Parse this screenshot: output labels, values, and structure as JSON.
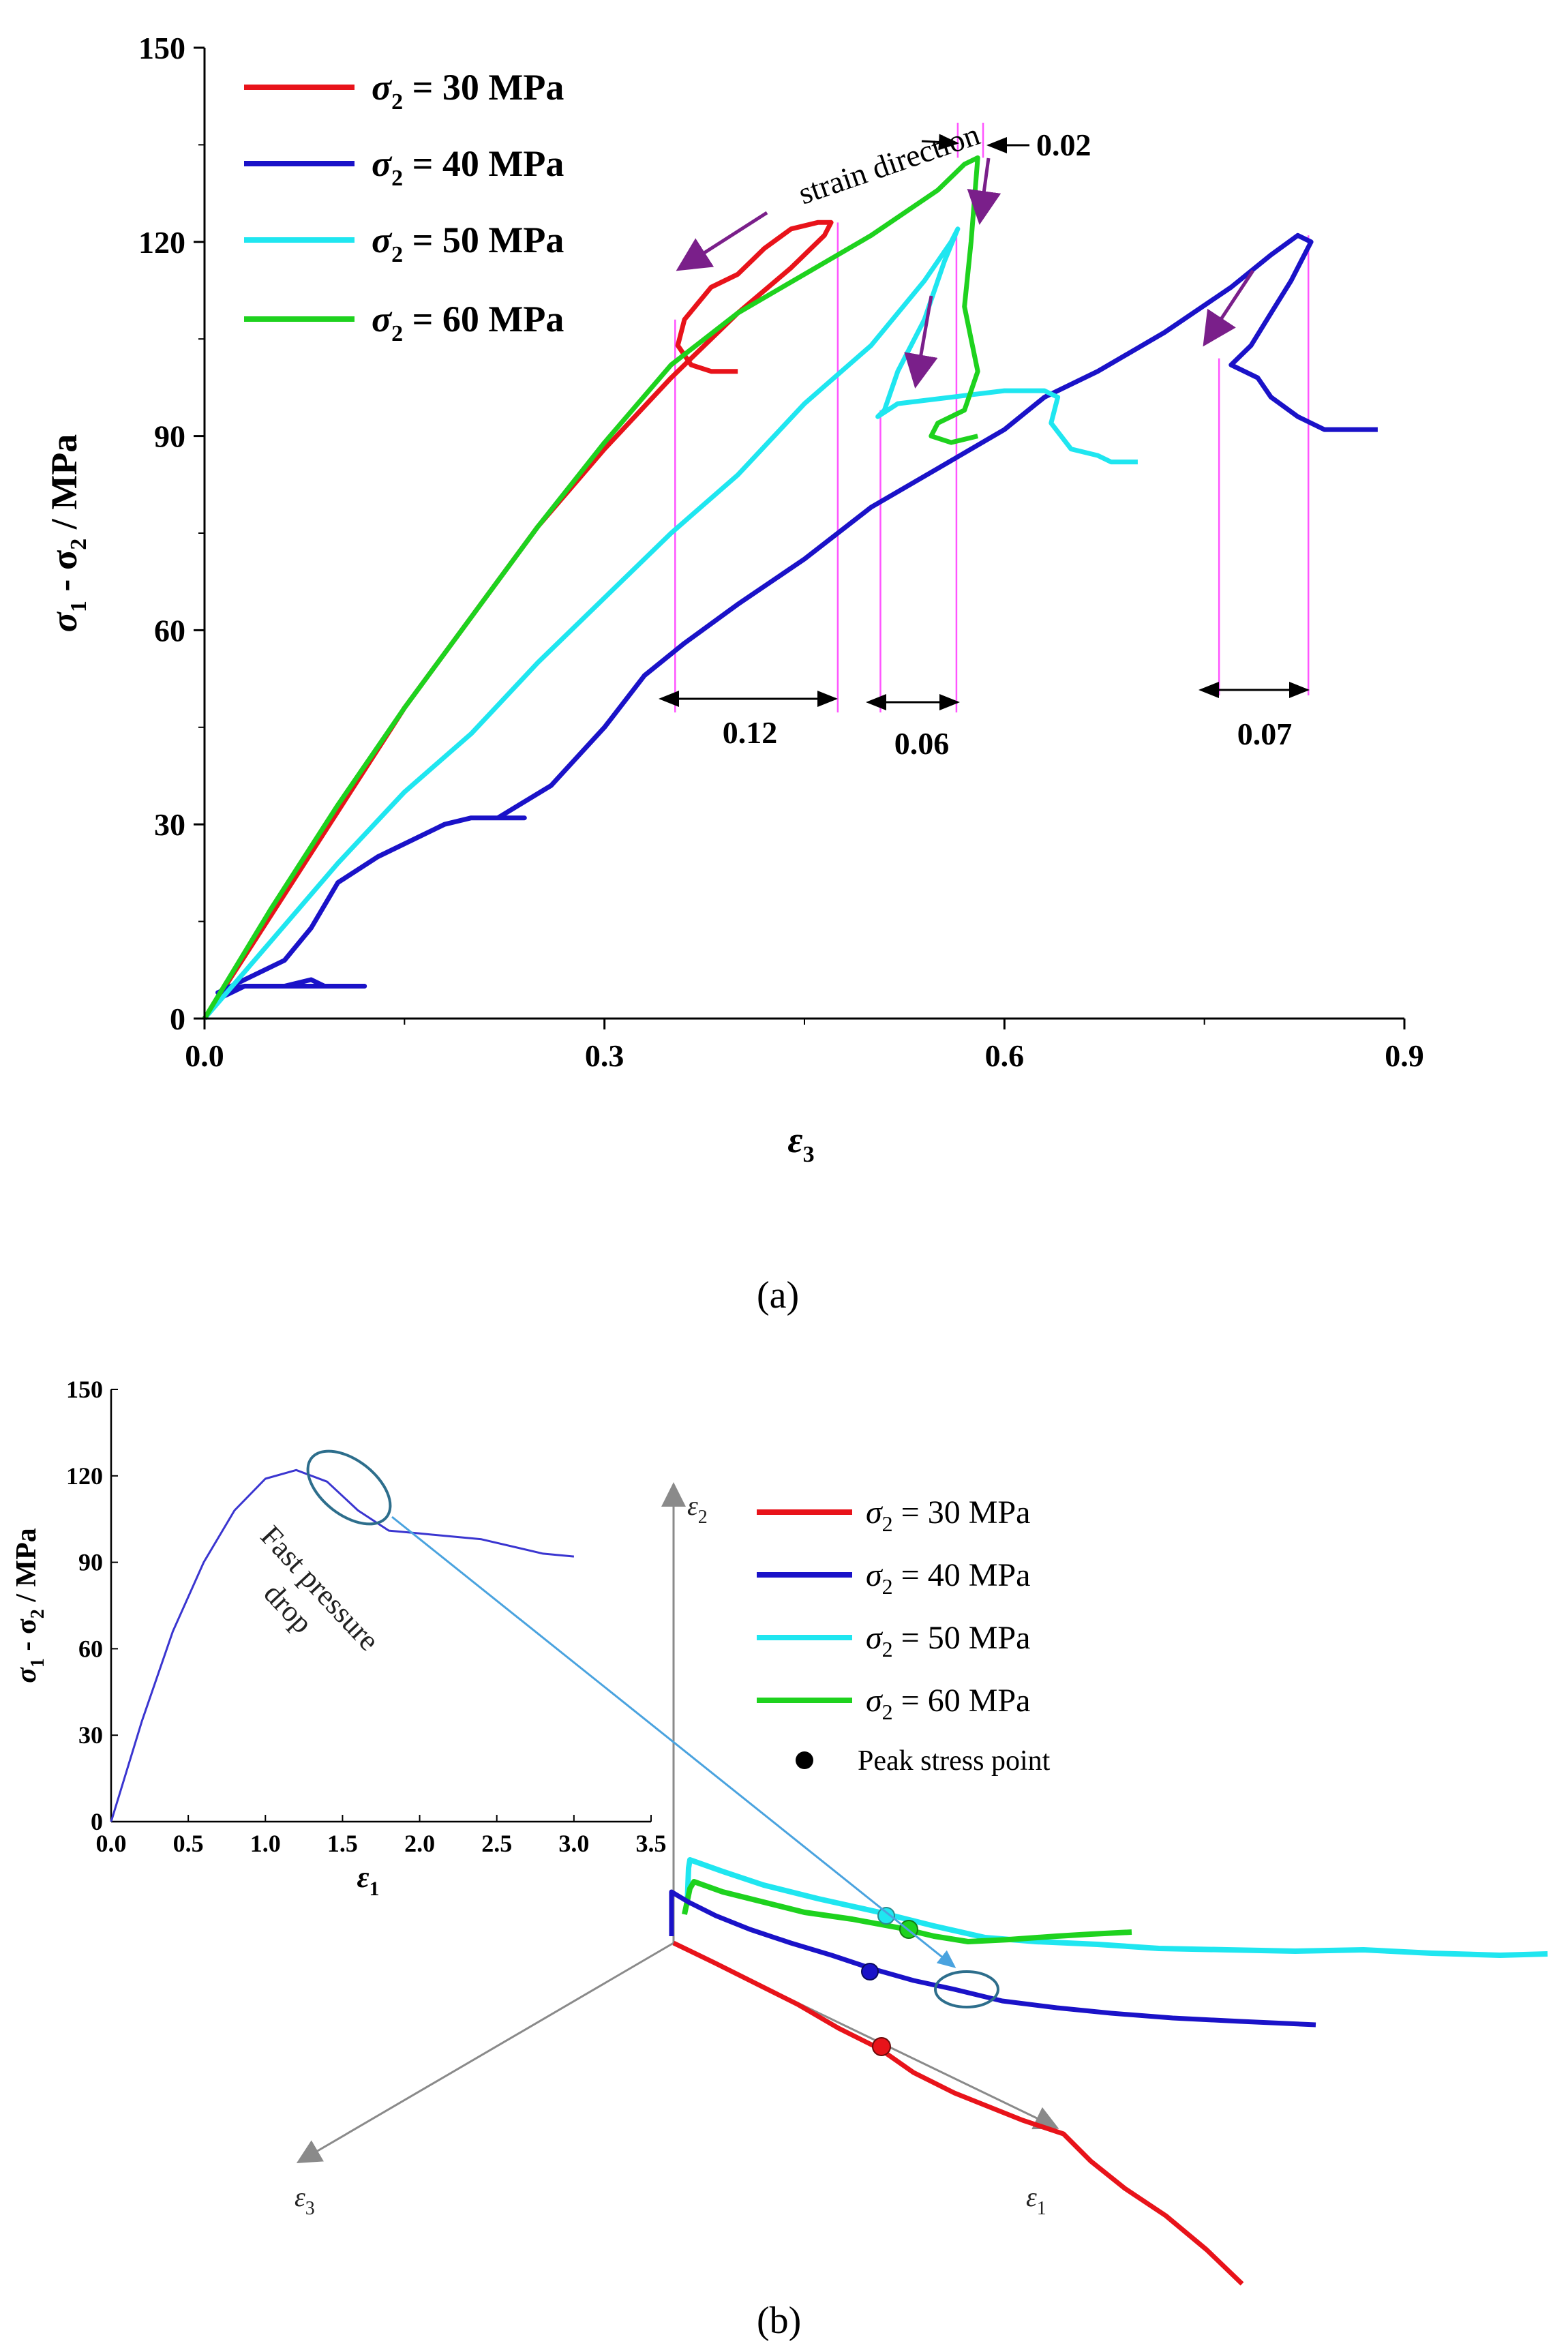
{
  "chart_data": [
    {
      "type": "line",
      "panel_label": "(a)",
      "xlabel_main": "ε",
      "xlabel_sub": "3",
      "ylabel": "σ1 - σ2 / MPa",
      "ylabel_parts": [
        "σ",
        "1",
        " - σ",
        "2",
        " / MPa"
      ],
      "xlim": [
        0,
        0.9
      ],
      "ylim": [
        0,
        150
      ],
      "xticks": [
        0.0,
        0.3,
        0.6,
        0.9
      ],
      "xtick_labels": [
        "0.0",
        "0.3",
        "0.6",
        "0.9"
      ],
      "yticks": [
        0,
        30,
        60,
        90,
        120,
        150
      ],
      "ytick_labels": [
        "0",
        "30",
        "60",
        "90",
        "120",
        "150"
      ],
      "legend": [
        {
          "sym": "σ",
          "sub": "2",
          "text": " = 30 MPa",
          "color": "#e8131a"
        },
        {
          "sym": "σ",
          "sub": "2",
          "text": " = 40 MPa",
          "color": "#1a12c8"
        },
        {
          "sym": "σ",
          "sub": "2",
          "text": " = 50 MPa",
          "color": "#1fe6f0"
        },
        {
          "sym": "σ",
          "sub": "2",
          "text": " = 60 MPa",
          "color": "#1ed21e"
        }
      ],
      "series": [
        {
          "name": "σ2 = 30 MPa",
          "color": "#e8131a",
          "x": [
            0,
            0.05,
            0.1,
            0.15,
            0.2,
            0.25,
            0.3,
            0.35,
            0.4,
            0.44,
            0.465,
            0.47,
            0.46,
            0.44,
            0.42,
            0.4,
            0.38,
            0.36,
            0.355,
            0.365,
            0.38,
            0.4
          ],
          "y": [
            0,
            16,
            32,
            48,
            62,
            76,
            88,
            99,
            109,
            116,
            121,
            123,
            123,
            122,
            119,
            115,
            113,
            108,
            104,
            101,
            100,
            100
          ]
        },
        {
          "name": "σ2 = 40 MPa",
          "color": "#1a12c8",
          "x": [
            0.0,
            0.01,
            0.03,
            0.06,
            0.08,
            0.09,
            0.12,
            0.07,
            0.03,
            0.01,
            0.06,
            0.08,
            0.1,
            0.13,
            0.18,
            0.2,
            0.24,
            0.22,
            0.26,
            0.3,
            0.33,
            0.36,
            0.4,
            0.45,
            0.5,
            0.55,
            0.6,
            0.63,
            0.67,
            0.72,
            0.77,
            0.8,
            0.82,
            0.83,
            0.815,
            0.8,
            0.785,
            0.77,
            0.79,
            0.8,
            0.82,
            0.84,
            0.88
          ],
          "y": [
            0,
            3,
            5,
            5,
            6,
            5,
            5,
            5,
            5,
            4,
            9,
            14,
            21,
            25,
            30,
            31,
            31,
            31,
            36,
            45,
            53,
            58,
            64,
            71,
            79,
            85,
            91,
            96,
            100,
            106,
            113,
            118,
            121,
            120,
            114,
            109,
            104,
            101,
            99,
            96,
            93,
            91,
            91
          ]
        },
        {
          "name": "σ2 = 50 MPa",
          "color": "#1fe6f0",
          "x": [
            0,
            0.05,
            0.1,
            0.15,
            0.2,
            0.25,
            0.3,
            0.35,
            0.4,
            0.45,
            0.5,
            0.54,
            0.56,
            0.565,
            0.555,
            0.54,
            0.52,
            0.51,
            0.505,
            0.52,
            0.56,
            0.6,
            0.63,
            0.64,
            0.635,
            0.65,
            0.67,
            0.68,
            0.7
          ],
          "y": [
            0,
            12,
            24,
            35,
            44,
            55,
            65,
            75,
            84,
            95,
            104,
            114,
            120,
            122,
            117,
            108,
            100,
            94,
            93,
            95,
            96,
            97,
            97,
            96,
            92,
            88,
            87,
            86,
            86
          ]
        },
        {
          "name": "σ2 = 60 MPa",
          "color": "#1ed21e",
          "x": [
            0,
            0.05,
            0.1,
            0.15,
            0.2,
            0.25,
            0.3,
            0.35,
            0.4,
            0.45,
            0.5,
            0.55,
            0.57,
            0.58,
            0.575,
            0.57,
            0.575,
            0.58,
            0.57,
            0.55,
            0.545,
            0.56,
            0.58
          ],
          "y": [
            0,
            17,
            33,
            48,
            62,
            76,
            89,
            101,
            109,
            115,
            121,
            128,
            132,
            133,
            120,
            110,
            105,
            100,
            94,
            92,
            90,
            89,
            90
          ]
        }
      ],
      "annotations": [
        {
          "text": "strain direction"
        },
        {
          "text": "0.02"
        },
        {
          "text": "0.12"
        },
        {
          "text": "0.06"
        },
        {
          "text": "0.07"
        }
      ]
    },
    {
      "type": "line",
      "panel_label": "(b)",
      "inset": {
        "xlim": [
          0,
          3.5
        ],
        "ylim": [
          0,
          150
        ],
        "xticks": [
          0.0,
          0.5,
          1.0,
          1.5,
          2.0,
          2.5,
          3.0,
          3.5
        ],
        "xtick_labels": [
          "0.0",
          "0.5",
          "1.0",
          "1.5",
          "2.0",
          "2.5",
          "3.0",
          "3.5"
        ],
        "yticks": [
          0,
          30,
          60,
          90,
          120,
          150
        ],
        "ytick_labels": [
          "0",
          "30",
          "60",
          "90",
          "120",
          "150"
        ],
        "xlabel_main": "ε",
        "xlabel_sub": "1",
        "ylabel": "σ1 - σ2 / MPa",
        "ylabel_parts": [
          "σ",
          "1",
          " - σ",
          "2",
          " / MPa"
        ],
        "series": [
          {
            "name": "σ2 = 40 MPa",
            "color": "#3a35d0",
            "x": [
              0,
              0.2,
              0.4,
              0.6,
              0.8,
              1.0,
              1.2,
              1.4,
              1.6,
              1.8,
              2.0,
              2.4,
              2.8,
              3.0
            ],
            "y": [
              0,
              35,
              66,
              90,
              108,
              119,
              122,
              118,
              108,
              101,
              100,
              98,
              93,
              92
            ]
          }
        ],
        "annotation": "Fast pressure drop",
        "annotation_lines": [
          "Fast pressure",
          "drop"
        ]
      },
      "axes3d": {
        "x_label_main": "ε",
        "x_label_sub": "1",
        "y_label_main": "ε",
        "y_label_sub": "2",
        "z_label_main": "ε",
        "z_label_sub": "3"
      },
      "legend": [
        {
          "sym": "σ",
          "sub": "2",
          "text": " = 30 MPa",
          "color": "#e8131a",
          "marker": "line"
        },
        {
          "sym": "σ",
          "sub": "2",
          "text": " = 40 MPa",
          "color": "#1a12c8",
          "marker": "line"
        },
        {
          "sym": "σ",
          "sub": "2",
          "text": " = 50 MPa",
          "color": "#1fe6f0",
          "marker": "line"
        },
        {
          "sym": "σ",
          "sub": "2",
          "text": " = 60 MPa",
          "color": "#1ed21e",
          "marker": "line"
        },
        {
          "text": "Peak stress point",
          "color": "#000000",
          "marker": "dot"
        }
      ]
    }
  ],
  "colors": {
    "magenta_guides": "#ff55ff",
    "arrow_purple": "#7a1f8a",
    "ellipse": "#2d6e8c",
    "axis_gray": "#8a8a8a",
    "pointer_line": "#4aa3df"
  }
}
